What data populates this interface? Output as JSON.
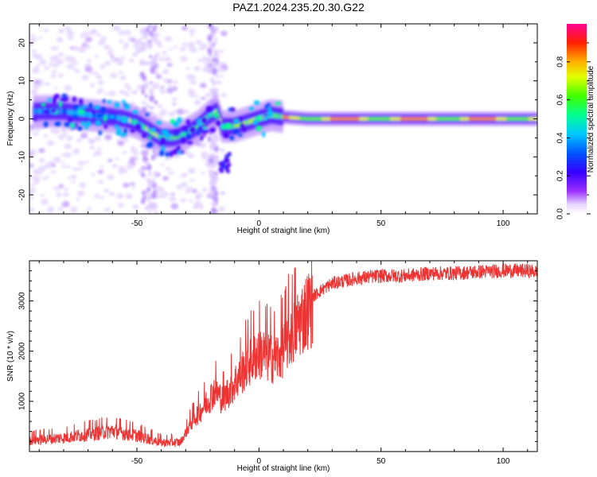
{
  "title": "PAZ1.2024.235.20.30.G22",
  "chart_data": [
    {
      "type": "heatmap",
      "xlabel": "Height of straight line (km)",
      "ylabel": "Frequency (Hz)",
      "xlim": [
        -94,
        114
      ],
      "ylim": [
        -25,
        25
      ],
      "xticks": [
        -50,
        0,
        50,
        100
      ],
      "yticks": [
        -20,
        -10,
        0,
        10,
        20
      ],
      "colorbar": {
        "label": "Normalized spectral amplitude",
        "range": [
          0,
          1
        ],
        "ticks": [
          "0.0",
          "0.2",
          "0.4",
          "0.6",
          "0.8"
        ],
        "colormap": [
          "#ffffff",
          "#e0d0ff",
          "#8a2be2",
          "#4b00ff",
          "#0000ff",
          "#00bfff",
          "#00ff80",
          "#80ff00",
          "#ffff00",
          "#ff8000",
          "#ff0000",
          "#ff0080"
        ]
      },
      "ridge_frequency_hz": {
        "x": [
          -90,
          -80,
          -70,
          -60,
          -55,
          -50,
          -45,
          -40,
          -35,
          -30,
          -25,
          -20,
          -17,
          -15,
          -10,
          -5,
          0,
          5,
          10,
          20,
          40,
          60,
          80,
          100,
          114
        ],
        "y": [
          2,
          2,
          1,
          0.5,
          0,
          -1,
          -3,
          -5,
          -5,
          -4,
          -2,
          1,
          2,
          -2,
          -2,
          -1,
          0,
          1,
          0.5,
          0,
          0,
          0,
          0,
          0,
          0
        ]
      }
    },
    {
      "type": "line",
      "color": "#ee3333",
      "xlabel": "Height of straight line (km)",
      "ylabel": "SNR (10 * v/v)",
      "xlim": [
        -94,
        114
      ],
      "ylim": [
        0,
        3800
      ],
      "xticks": [
        -50,
        0,
        50,
        100
      ],
      "yticks": [
        1000,
        2000,
        3000
      ],
      "trend": {
        "x": [
          -94,
          -80,
          -60,
          -50,
          -40,
          -32,
          -28,
          -22,
          -18,
          -15,
          -12,
          -8,
          -4,
          0,
          4,
          8,
          12,
          16,
          20,
          25,
          30,
          40,
          50,
          60,
          70,
          80,
          90,
          100,
          110,
          114
        ],
        "y": [
          250,
          300,
          450,
          350,
          200,
          200,
          600,
          1000,
          1300,
          1100,
          1300,
          1600,
          1900,
          2100,
          2000,
          2000,
          2400,
          2700,
          3000,
          3200,
          3350,
          3450,
          3500,
          3500,
          3550,
          3550,
          3580,
          3600,
          3600,
          3580
        ]
      }
    }
  ]
}
